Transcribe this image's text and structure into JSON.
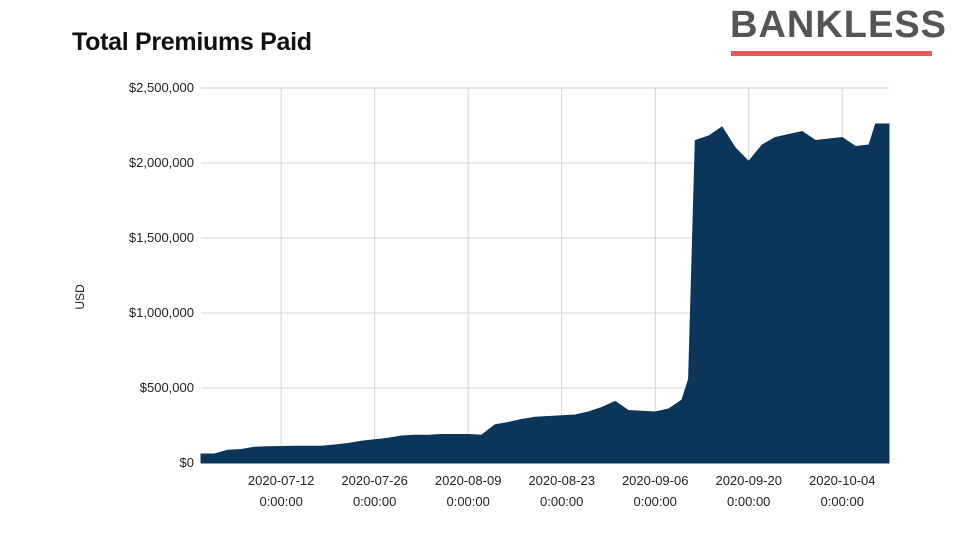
{
  "brand": {
    "name": "BANKLESS",
    "accent_color": "#e85a5a"
  },
  "chart_data": {
    "type": "area",
    "title": "Total Premiums Paid",
    "xlabel": "",
    "ylabel": "USD",
    "ylim": [
      0,
      2500000
    ],
    "grid": true,
    "legend": "none",
    "color": "#0b3559",
    "y_ticks": [
      0,
      500000,
      1000000,
      1500000,
      2000000,
      2500000
    ],
    "y_tick_labels": [
      "$0",
      "$500,000",
      "$1,000,000",
      "$1,500,000",
      "$2,000,000",
      "$2,500,000"
    ],
    "x_ticks": [
      {
        "date": "2020-07-12",
        "line1": "2020-07-12",
        "line2": "0:00:00"
      },
      {
        "date": "2020-07-26",
        "line1": "2020-07-26",
        "line2": "0:00:00"
      },
      {
        "date": "2020-08-09",
        "line1": "2020-08-09",
        "line2": "0:00:00"
      },
      {
        "date": "2020-08-23",
        "line1": "2020-08-23",
        "line2": "0:00:00"
      },
      {
        "date": "2020-09-06",
        "line1": "2020-09-06",
        "line2": "0:00:00"
      },
      {
        "date": "2020-09-20",
        "line1": "2020-09-20",
        "line2": "0:00:00"
      },
      {
        "date": "2020-10-04",
        "line1": "2020-10-04",
        "line2": "0:00:00"
      }
    ],
    "x_range": [
      "2020-06-30",
      "2020-10-11"
    ],
    "x": [
      "2020-06-30",
      "2020-07-02",
      "2020-07-04",
      "2020-07-06",
      "2020-07-08",
      "2020-07-10",
      "2020-07-12",
      "2020-07-14",
      "2020-07-16",
      "2020-07-18",
      "2020-07-20",
      "2020-07-22",
      "2020-07-24",
      "2020-07-26",
      "2020-07-28",
      "2020-07-30",
      "2020-08-01",
      "2020-08-03",
      "2020-08-05",
      "2020-08-07",
      "2020-08-09",
      "2020-08-11",
      "2020-08-13",
      "2020-08-15",
      "2020-08-17",
      "2020-08-19",
      "2020-08-21",
      "2020-08-23",
      "2020-08-25",
      "2020-08-27",
      "2020-08-29",
      "2020-08-31",
      "2020-09-02",
      "2020-09-04",
      "2020-09-06",
      "2020-09-08",
      "2020-09-10",
      "2020-09-11",
      "2020-09-12",
      "2020-09-14",
      "2020-09-16",
      "2020-09-18",
      "2020-09-20",
      "2020-09-22",
      "2020-09-24",
      "2020-09-26",
      "2020-09-28",
      "2020-09-30",
      "2020-10-02",
      "2020-10-04",
      "2020-10-06",
      "2020-10-08",
      "2020-10-09",
      "2020-10-11"
    ],
    "values": [
      60000,
      60000,
      85000,
      90000,
      105000,
      108000,
      110000,
      112000,
      112000,
      112000,
      120000,
      130000,
      145000,
      155000,
      165000,
      180000,
      185000,
      185000,
      190000,
      190000,
      190000,
      185000,
      255000,
      270000,
      290000,
      305000,
      310000,
      315000,
      320000,
      340000,
      370000,
      410000,
      350000,
      345000,
      340000,
      360000,
      420000,
      560000,
      2150000,
      2180000,
      2240000,
      2100000,
      2010000,
      2120000,
      2170000,
      2190000,
      2210000,
      2150000,
      2160000,
      2170000,
      2110000,
      2120000,
      2260000,
      2260000
    ]
  }
}
